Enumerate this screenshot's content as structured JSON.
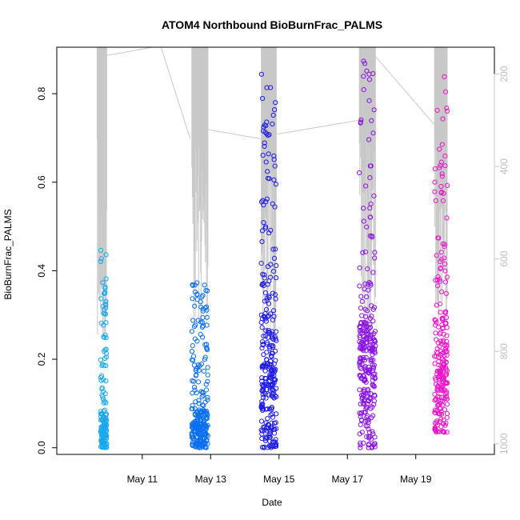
{
  "chart_data": {
    "type": "scatter",
    "title": "ATOM4 Northbound BioBurnFrac_PALMS",
    "xlabel": "Date",
    "ylabel": "BioBurnFrac_PALMS",
    "x_ticks": [
      "May 11",
      "May 13",
      "May 15",
      "May 17",
      "May 19"
    ],
    "x_tick_days": [
      11,
      13,
      15,
      17,
      19
    ],
    "xlim_days": [
      8.5,
      21.3
    ],
    "y_ticks": [
      0.0,
      0.2,
      0.4,
      0.6,
      0.8
    ],
    "ylim": [
      -0.015,
      0.905
    ],
    "y2_label": "",
    "y2_ticks": [
      200,
      400,
      600,
      800,
      1000
    ],
    "y2_lim_inverted": [
      1023,
      142
    ],
    "grid": false,
    "legend": "none",
    "colors": {
      "flight1": "#1aa7ee",
      "flight2": "#0b6ff0",
      "flight3": "#1f1be6",
      "flight4": "#8a14e2",
      "flight5": "#ea16c9",
      "altitude_line": "#c8c8c8"
    },
    "series": [
      {
        "flight": 1,
        "date_range": [
          "May 9.78",
          "May 9.96"
        ],
        "color": "flight1",
        "y_min": 0.0,
        "y_max": 0.46,
        "y_center": 0.06,
        "y_spread": 0.05,
        "n": 160
      },
      {
        "flight": 2,
        "date_range": [
          "May 12.45",
          "May 12.92"
        ],
        "color": "flight2",
        "y_min": 0.0,
        "y_max": 0.38,
        "y_center": 0.07,
        "y_spread": 0.06,
        "n": 260
      },
      {
        "flight": 3,
        "date_range": [
          "May 14.48",
          "May 14.92"
        ],
        "color": "flight3",
        "y_min": 0.0,
        "y_max": 0.845,
        "y_center": 0.3,
        "y_spread": 0.22,
        "n": 280
      },
      {
        "flight": 4,
        "date_range": [
          "May 17.35",
          "May 17.82"
        ],
        "color": "flight4",
        "y_min": 0.0,
        "y_max": 0.875,
        "y_center": 0.3,
        "y_spread": 0.2,
        "n": 280
      },
      {
        "flight": 5,
        "date_range": [
          "May 19.55",
          "May 19.92"
        ],
        "color": "flight5",
        "y_min": 0.035,
        "y_max": 0.84,
        "y_center": 0.27,
        "y_spread": 0.16,
        "n": 240
      }
    ],
    "altitude_transits": [
      [
        [
          9.96,
          160
        ],
        [
          11.3,
          140
        ]
      ],
      [
        [
          11.55,
          142
        ],
        [
          12.4,
          340
        ]
      ],
      [
        [
          12.9,
          320
        ],
        [
          14.45,
          340
        ]
      ],
      [
        [
          14.95,
          330
        ],
        [
          17.35,
          300
        ]
      ],
      [
        [
          17.8,
          160
        ],
        [
          19.55,
          310
        ]
      ]
    ],
    "altitude_profiles": [
      {
        "x_range": [
          9.68,
          9.96
        ],
        "min": 142,
        "max": 800
      },
      {
        "x_range": [
          12.45,
          12.92
        ],
        "min": 142,
        "max": 780
      },
      {
        "x_range": [
          14.48,
          14.92
        ],
        "min": 142,
        "max": 820
      },
      {
        "x_range": [
          17.35,
          17.82
        ],
        "min": 142,
        "max": 820
      },
      {
        "x_range": [
          19.55,
          19.92
        ],
        "min": 142,
        "max": 740
      }
    ]
  }
}
